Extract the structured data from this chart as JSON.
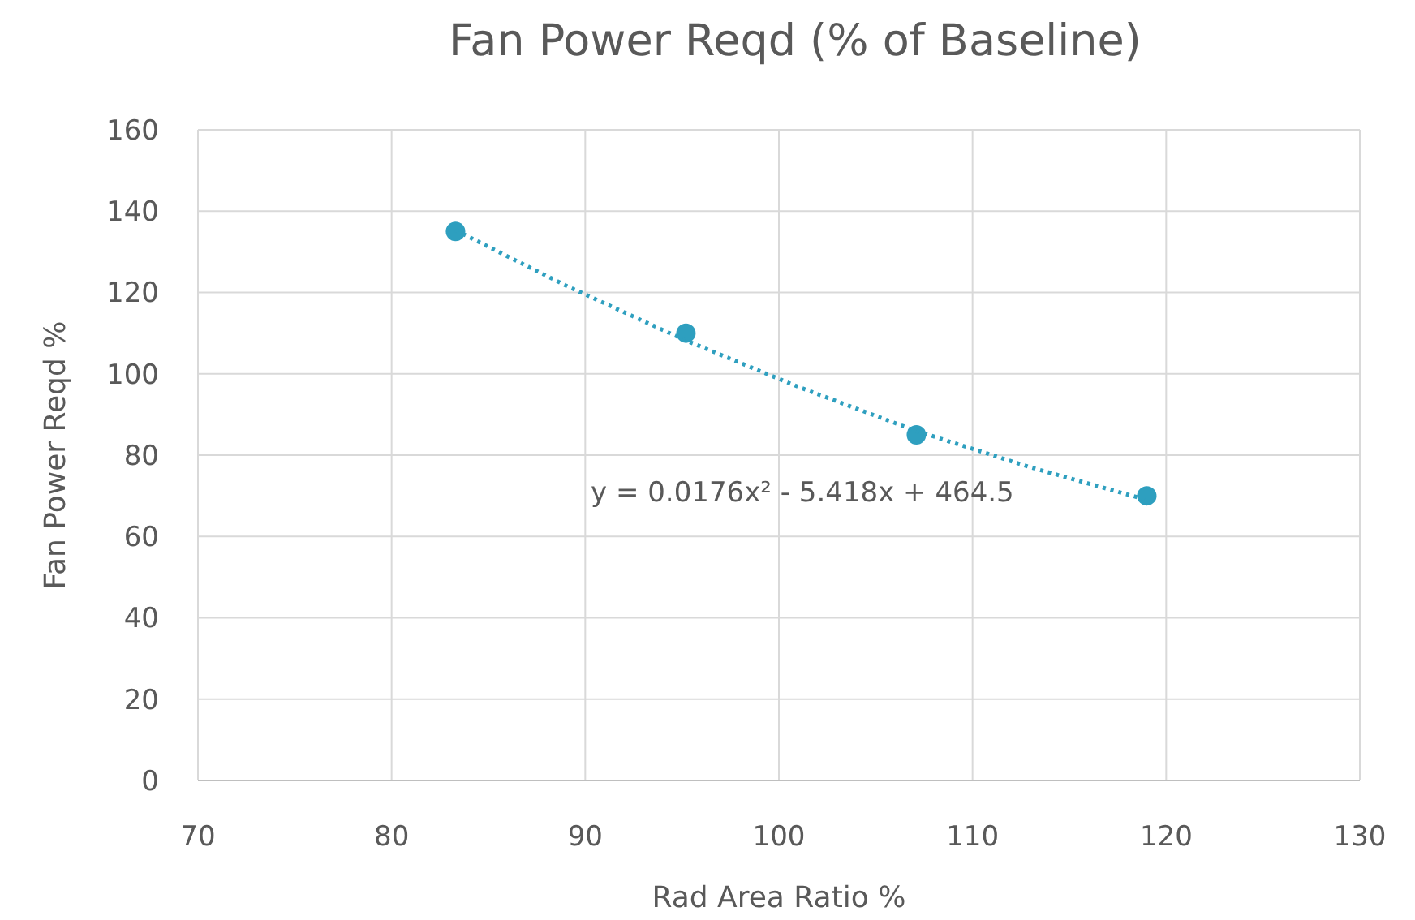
{
  "chart_data": {
    "type": "scatter",
    "title": "Fan Power Reqd (% of Baseline)",
    "xlabel": "Rad Area Ratio %",
    "ylabel": "Fan Power Reqd %",
    "xlim": [
      70,
      130
    ],
    "xticks": [
      70,
      80,
      90,
      100,
      110,
      120,
      130
    ],
    "ylim": [
      0,
      160
    ],
    "yticks": [
      0,
      20,
      40,
      60,
      80,
      100,
      120,
      140,
      160
    ],
    "grid": true,
    "series": [
      {
        "color": "#2e9fbf",
        "marker": "circle",
        "x": [
          83.3,
          95.2,
          107.1,
          119
        ],
        "values": [
          135,
          110,
          85,
          70
        ]
      },
      {
        "type": "line",
        "color": "#2e9fbf",
        "marker": "none",
        "line_style": "dotted",
        "x": [
          83.3,
          89,
          95,
          101,
          107,
          113,
          119
        ],
        "values": [
          135.3,
          121.7,
          108.6,
          96.8,
          86.1,
          77,
          69
        ]
      }
    ],
    "annotations": [
      "y = 0.0176x² - 5.418x + 464.5"
    ]
  }
}
